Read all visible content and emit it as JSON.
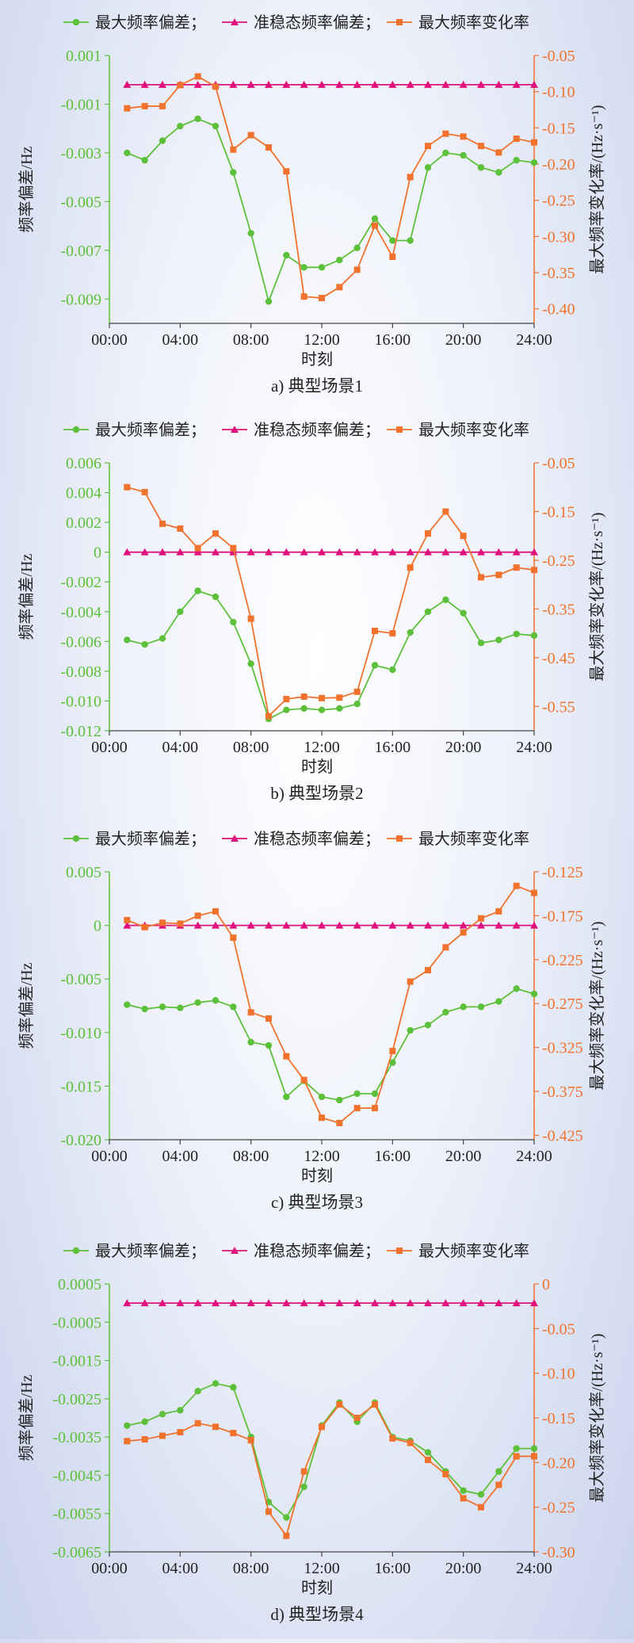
{
  "colors": {
    "max_dev": "#5dc03a",
    "quasi": "#e0117c",
    "rocof": "#f0722c",
    "axis_text": "#222222"
  },
  "legend": {
    "items": [
      "最大频率偏差；",
      "准稳态频率偏差；",
      "最大频率变化率"
    ]
  },
  "chart_data": [
    {
      "type": "line",
      "caption": "a) 典型场景1",
      "xlabel": "时刻",
      "ylabel": "频率偏差/Hz",
      "y2label": "最大频率变化率/(Hz·s⁻¹)",
      "x_ticks": [
        "00:00",
        "04:00",
        "08:00",
        "12:00",
        "16:00",
        "20:00",
        "24:00"
      ],
      "x": [
        1,
        2,
        3,
        4,
        5,
        6,
        7,
        8,
        9,
        10,
        11,
        12,
        13,
        14,
        15,
        16,
        17,
        18,
        19,
        20,
        21,
        22,
        23,
        24
      ],
      "ylim": [
        -0.01,
        0.001
      ],
      "y_ticks": [
        -0.009,
        -0.007,
        -0.005,
        -0.003,
        -0.001,
        0.001
      ],
      "y_tick_labels": [
        "-0.009",
        "-0.007",
        "-0.005",
        "-0.003",
        "-0.001",
        "0.001"
      ],
      "y2lim": [
        -0.42,
        -0.05
      ],
      "y2_ticks": [
        -0.4,
        -0.35,
        -0.3,
        -0.25,
        -0.2,
        -0.15,
        -0.1,
        -0.05
      ],
      "y2_tick_labels": [
        "-0.40",
        "-0.35",
        "-0.30",
        "-0.25",
        "-0.20",
        "-0.15",
        "-0.10",
        "-0.05"
      ],
      "series": [
        {
          "name": "最大频率偏差",
          "axis": "left",
          "marker": "circle",
          "color": "#5dc03a",
          "values": [
            -0.003,
            -0.0033,
            -0.0025,
            -0.0019,
            -0.0016,
            -0.0019,
            -0.0038,
            -0.0063,
            -0.0091,
            -0.0072,
            -0.0077,
            -0.0077,
            -0.0074,
            -0.0069,
            -0.0057,
            -0.0066,
            -0.0066,
            -0.0036,
            -0.003,
            -0.0031,
            -0.0036,
            -0.0038,
            -0.0033,
            -0.0034
          ]
        },
        {
          "name": "准稳态频率偏差",
          "axis": "left",
          "marker": "triangle",
          "color": "#e0117c",
          "values": [
            -0.0002,
            -0.0002,
            -0.0002,
            -0.0002,
            -0.0002,
            -0.0002,
            -0.0002,
            -0.0002,
            -0.0002,
            -0.0002,
            -0.0002,
            -0.0002,
            -0.0002,
            -0.0002,
            -0.0002,
            -0.0002,
            -0.0002,
            -0.0002,
            -0.0002,
            -0.0002,
            -0.0002,
            -0.0002,
            -0.0002,
            -0.0002
          ]
        },
        {
          "name": "最大频率变化率",
          "axis": "right",
          "marker": "square",
          "color": "#f0722c",
          "values": [
            -0.123,
            -0.12,
            -0.12,
            -0.091,
            -0.079,
            -0.093,
            -0.18,
            -0.16,
            -0.177,
            -0.21,
            -0.383,
            -0.385,
            -0.37,
            -0.346,
            -0.285,
            -0.328,
            -0.218,
            -0.175,
            -0.158,
            -0.162,
            -0.175,
            -0.184,
            -0.165,
            -0.17
          ]
        }
      ]
    },
    {
      "type": "line",
      "caption": "b) 典型场景2",
      "xlabel": "时刻",
      "ylabel": "频率偏差/Hz",
      "y2label": "最大频率变化率/(Hz·s⁻¹)",
      "x_ticks": [
        "00:00",
        "04:00",
        "08:00",
        "12:00",
        "16:00",
        "20:00",
        "24:00"
      ],
      "x": [
        1,
        2,
        3,
        4,
        5,
        6,
        7,
        8,
        9,
        10,
        11,
        12,
        13,
        14,
        15,
        16,
        17,
        18,
        19,
        20,
        21,
        22,
        23,
        24
      ],
      "ylim": [
        -0.012,
        0.006
      ],
      "y_ticks": [
        -0.012,
        -0.01,
        -0.008,
        -0.006,
        -0.004,
        -0.002,
        0,
        0.002,
        0.004,
        0.006
      ],
      "y_tick_labels": [
        "-0.012",
        "-0.010",
        "-0.008",
        "-0.006",
        "-0.004",
        "-0.002",
        "0",
        "0.002",
        "0.004",
        "0.006"
      ],
      "y2lim": [
        -0.6,
        -0.05
      ],
      "y2_ticks": [
        -0.55,
        -0.45,
        -0.35,
        -0.25,
        -0.15,
        -0.05
      ],
      "y2_tick_labels": [
        "-0.55",
        "-0.45",
        "-0.35",
        "-0.25",
        "-0.15",
        "-0.05"
      ],
      "series": [
        {
          "name": "最大频率偏差",
          "axis": "left",
          "marker": "circle",
          "color": "#5dc03a",
          "values": [
            -0.0059,
            -0.0062,
            -0.0058,
            -0.004,
            -0.0026,
            -0.003,
            -0.0047,
            -0.0075,
            -0.0112,
            -0.0106,
            -0.0105,
            -0.0106,
            -0.0105,
            -0.0102,
            -0.0076,
            -0.0079,
            -0.0054,
            -0.004,
            -0.0032,
            -0.0041,
            -0.0061,
            -0.0059,
            -0.0055,
            -0.0056
          ]
        },
        {
          "name": "准稳态频率偏差",
          "axis": "left",
          "marker": "triangle",
          "color": "#e0117c",
          "values": [
            0,
            0,
            0,
            0,
            0,
            0,
            0,
            0,
            0,
            0,
            0,
            0,
            0,
            0,
            0,
            0,
            0,
            0,
            0,
            0,
            0,
            0,
            0,
            0
          ]
        },
        {
          "name": "最大频率变化率",
          "axis": "right",
          "marker": "square",
          "color": "#f0722c",
          "values": [
            -0.1,
            -0.11,
            -0.175,
            -0.185,
            -0.225,
            -0.195,
            -0.225,
            -0.37,
            -0.57,
            -0.535,
            -0.53,
            -0.533,
            -0.532,
            -0.52,
            -0.395,
            -0.4,
            -0.265,
            -0.195,
            -0.15,
            -0.2,
            -0.285,
            -0.28,
            -0.265,
            -0.27
          ]
        }
      ]
    },
    {
      "type": "line",
      "caption": "c) 典型场景3",
      "xlabel": "时刻",
      "ylabel": "频率偏差/Hz",
      "y2label": "最大频率变化率/(Hz·s⁻¹)",
      "x_ticks": [
        "00:00",
        "04:00",
        "08:00",
        "12:00",
        "16:00",
        "20:00",
        "24:00"
      ],
      "x": [
        1,
        2,
        3,
        4,
        5,
        6,
        7,
        8,
        9,
        10,
        11,
        12,
        13,
        14,
        15,
        16,
        17,
        18,
        19,
        20,
        21,
        22,
        23,
        24
      ],
      "ylim": [
        -0.02,
        0.005
      ],
      "y_ticks": [
        -0.02,
        -0.015,
        -0.01,
        -0.005,
        0,
        0.005
      ],
      "y_tick_labels": [
        "-0.020",
        "-0.015",
        "-0.010",
        "-0.005",
        "0",
        "0.005"
      ],
      "y2lim": [
        -0.43,
        -0.125
      ],
      "y2_ticks": [
        -0.425,
        -0.375,
        -0.325,
        -0.275,
        -0.225,
        -0.175,
        -0.125
      ],
      "y2_tick_labels": [
        "-0.425",
        "-0.375",
        "-0.325",
        "-0.275",
        "-0.225",
        "-0.175",
        "-0.125"
      ],
      "series": [
        {
          "name": "最大频率偏差",
          "axis": "left",
          "marker": "circle",
          "color": "#5dc03a",
          "values": [
            -0.0074,
            -0.0078,
            -0.0076,
            -0.0077,
            -0.0072,
            -0.007,
            -0.0076,
            -0.0109,
            -0.0112,
            -0.016,
            -0.0145,
            -0.016,
            -0.0163,
            -0.0157,
            -0.0157,
            -0.0128,
            -0.0098,
            -0.0093,
            -0.0081,
            -0.0076,
            -0.0076,
            -0.0071,
            -0.0059,
            -0.0064
          ]
        },
        {
          "name": "准稳态频率偏差",
          "axis": "left",
          "marker": "triangle",
          "color": "#e0117c",
          "values": [
            0,
            0,
            0,
            0,
            0,
            0,
            0,
            0,
            0,
            0,
            0,
            0,
            0,
            0,
            0,
            0,
            0,
            0,
            0,
            0,
            0,
            0,
            0,
            0
          ]
        },
        {
          "name": "最大频率变化率",
          "axis": "right",
          "marker": "square",
          "color": "#f0722c",
          "values": [
            -0.18,
            -0.188,
            -0.183,
            -0.184,
            -0.175,
            -0.17,
            -0.2,
            -0.285,
            -0.292,
            -0.335,
            -0.362,
            -0.405,
            -0.411,
            -0.394,
            -0.394,
            -0.329,
            -0.25,
            -0.237,
            -0.211,
            -0.194,
            -0.178,
            -0.17,
            -0.141,
            -0.149
          ]
        }
      ]
    },
    {
      "type": "line",
      "caption": "d) 典型场景4",
      "xlabel": "时刻",
      "ylabel": "频率偏差/Hz",
      "y2label": "最大频率变化率/(Hz·s⁻¹)",
      "x_ticks": [
        "00:00",
        "04:00",
        "08:00",
        "12:00",
        "16:00",
        "20:00",
        "24:00"
      ],
      "x": [
        1,
        2,
        3,
        4,
        5,
        6,
        7,
        8,
        9,
        10,
        11,
        12,
        13,
        14,
        15,
        16,
        17,
        18,
        19,
        20,
        21,
        22,
        23,
        24
      ],
      "ylim": [
        -0.0065,
        0.0005
      ],
      "y_ticks": [
        -0.0065,
        -0.0055,
        -0.0045,
        -0.0035,
        -0.0025,
        -0.0015,
        -0.0005,
        0.0005
      ],
      "y_tick_labels": [
        "-0.0065",
        "-0.0055",
        "-0.0045",
        "-0.0035",
        "-0.0025",
        "-0.0015",
        "-0.0005",
        "0.0005"
      ],
      "y2lim": [
        -0.3,
        0
      ],
      "y2_ticks": [
        -0.3,
        -0.25,
        -0.2,
        -0.15,
        -0.1,
        -0.05,
        0
      ],
      "y2_tick_labels": [
        "-0.30",
        "-0.25",
        "-0.20",
        "-0.15",
        "-0.10",
        "-0.05",
        "0"
      ],
      "series": [
        {
          "name": "最大频率偏差",
          "axis": "left",
          "marker": "circle",
          "color": "#5dc03a",
          "values": [
            -0.0032,
            -0.0031,
            -0.0029,
            -0.0028,
            -0.0023,
            -0.0021,
            -0.0022,
            -0.0035,
            -0.0052,
            -0.0056,
            -0.0048,
            -0.0032,
            -0.0026,
            -0.0031,
            -0.0026,
            -0.0035,
            -0.0036,
            -0.0039,
            -0.0044,
            -0.0049,
            -0.005,
            -0.0044,
            -0.0038,
            -0.0038
          ]
        },
        {
          "name": "准稳态频率偏差",
          "axis": "left",
          "marker": "triangle",
          "color": "#e0117c",
          "values": [
            0,
            0,
            0,
            0,
            0,
            0,
            0,
            0,
            0,
            0,
            0,
            0,
            0,
            0,
            0,
            0,
            0,
            0,
            0,
            0,
            0,
            0,
            0,
            0
          ]
        },
        {
          "name": "最大频率变化率",
          "axis": "right",
          "marker": "square",
          "color": "#f0722c",
          "values": [
            -0.176,
            -0.174,
            -0.17,
            -0.166,
            -0.156,
            -0.16,
            -0.167,
            -0.175,
            -0.255,
            -0.282,
            -0.21,
            -0.16,
            -0.135,
            -0.15,
            -0.135,
            -0.173,
            -0.178,
            -0.197,
            -0.213,
            -0.24,
            -0.25,
            -0.225,
            -0.193,
            -0.193
          ]
        }
      ]
    }
  ]
}
